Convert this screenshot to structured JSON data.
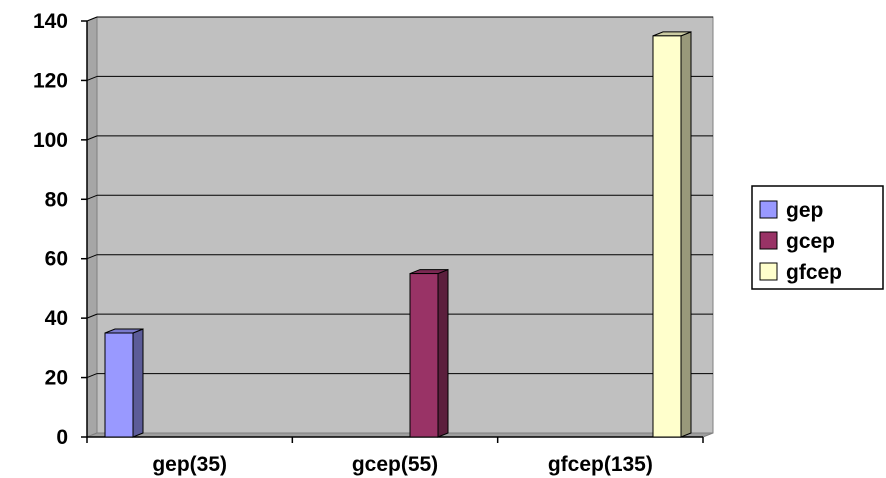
{
  "chart_data": {
    "type": "bar",
    "categories": [
      "gep(35)",
      "gcep(55)",
      "gfcep(135)"
    ],
    "series": [
      {
        "name": "gep",
        "values": [
          35,
          null,
          null
        ],
        "color": "#9999ff"
      },
      {
        "name": "gcep",
        "values": [
          null,
          55,
          null
        ],
        "color": "#993366"
      },
      {
        "name": "gfcep",
        "values": [
          null,
          null,
          135
        ],
        "color": "#ffffcc"
      }
    ],
    "ylim": [
      0,
      140
    ],
    "yticks": [
      0,
      20,
      40,
      60,
      80,
      100,
      120,
      140
    ],
    "grid": true,
    "legend": "right",
    "plot_background": "#c0c0c0"
  }
}
